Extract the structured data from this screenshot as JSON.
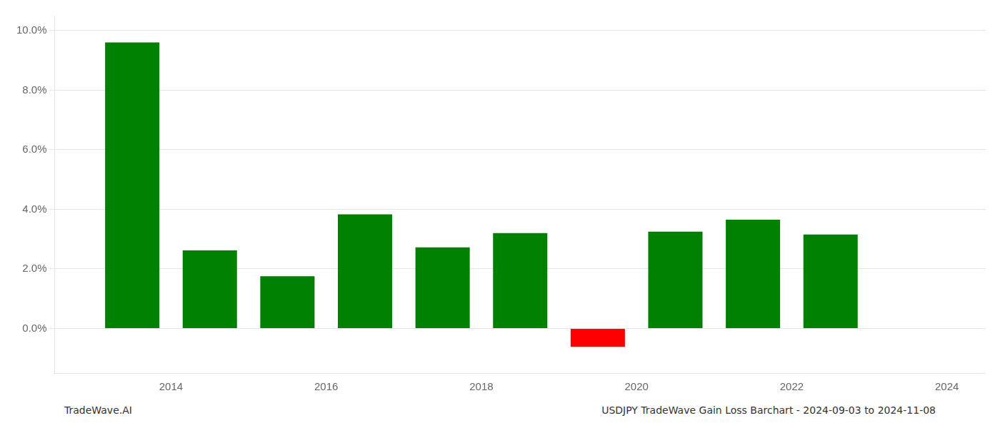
{
  "chart_data": {
    "type": "bar",
    "x": [
      2013.5,
      2014.5,
      2015.5,
      2016.5,
      2017.5,
      2018.5,
      2019.5,
      2020.5,
      2021.5,
      2022.5
    ],
    "values": [
      0.096,
      0.0262,
      0.0175,
      0.0383,
      0.0272,
      0.032,
      -0.0062,
      0.0325,
      0.0365,
      0.0315
    ],
    "colors": [
      "#008000",
      "#008000",
      "#008000",
      "#008000",
      "#008000",
      "#008000",
      "#ff0000",
      "#008000",
      "#008000",
      "#008000"
    ],
    "xlim": [
      2012.5,
      2024.5
    ],
    "xticks": [
      2014,
      2016,
      2018,
      2020,
      2022,
      2024
    ],
    "ylim": [
      -0.015,
      0.105
    ],
    "yticks": [
      {
        "value": 0.0,
        "label": "0.0%"
      },
      {
        "value": 0.02,
        "label": "2.0%"
      },
      {
        "value": 0.04,
        "label": "4.0%"
      },
      {
        "value": 0.06,
        "label": "6.0%"
      },
      {
        "value": 0.08,
        "label": "8.0%"
      },
      {
        "value": 0.1,
        "label": "10.0%"
      }
    ],
    "grid": true,
    "annotations": [
      "TradeWave.AI",
      "USDJPY TradeWave Gain Loss Barchart - 2024-09-03 to 2024-11-08"
    ]
  }
}
